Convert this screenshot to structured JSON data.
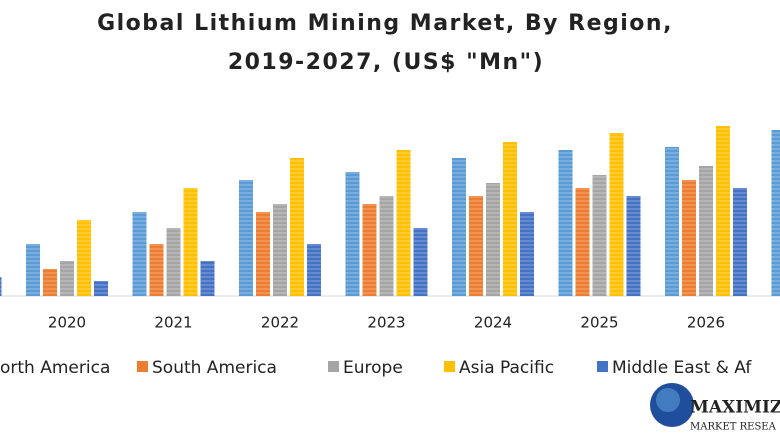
{
  "chart_data": {
    "type": "bar",
    "title": [
      "Global Lithium Mining Market, By Region,",
      "2019-2027, (US$ \"Mn\")"
    ],
    "categories": [
      null,
      "2020",
      "2021",
      "2022",
      "2023",
      "2024",
      "2025",
      "2026",
      null
    ],
    "ylim": [
      0,
      200
    ],
    "series": [
      {
        "name": "orth America",
        "color": "#5b9bd5",
        "values": [
          null,
          52,
          84,
          116,
          124,
          138,
          146,
          149,
          166
        ]
      },
      {
        "name": "South America",
        "color": "#ed7d31",
        "values": [
          null,
          27,
          52,
          84,
          92,
          100,
          108,
          116,
          null
        ]
      },
      {
        "name": "Europe",
        "color": "#a5a5a5",
        "values": [
          null,
          35,
          68,
          92,
          100,
          113,
          121,
          130,
          null
        ]
      },
      {
        "name": "Asia Pacific",
        "color": "#ffc000",
        "values": [
          null,
          76,
          108,
          138,
          146,
          154,
          163,
          170,
          null
        ]
      },
      {
        "name": "Middle East & Af",
        "color": "#4472c4",
        "values": [
          19,
          15,
          35,
          52,
          68,
          84,
          100,
          108,
          null
        ]
      }
    ]
  },
  "logo": {
    "name": "MAXIMIZ",
    "tagline": "MARKET RESEA"
  }
}
